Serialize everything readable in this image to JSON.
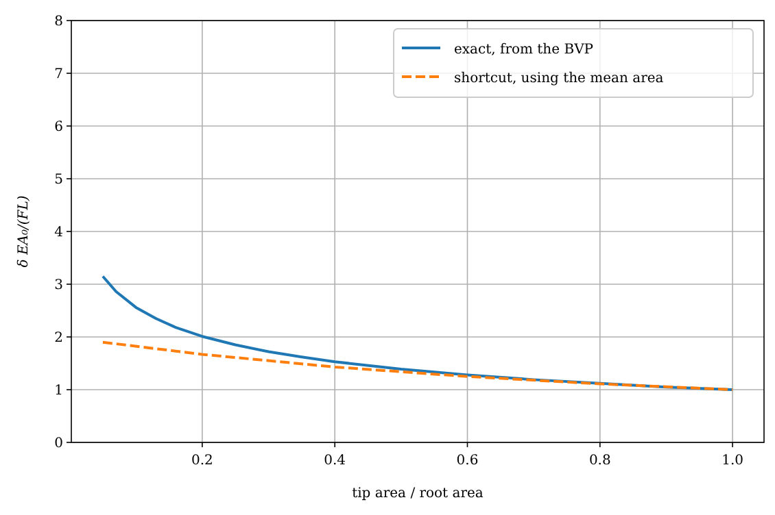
{
  "chart_data": {
    "type": "line",
    "xlabel": "tip area / root area",
    "ylabel": "δ EA₀/(FL)",
    "xlim": [
      0.0025,
      1.0475
    ],
    "xticks": [
      {
        "value": 0.2,
        "label": "0.2"
      },
      {
        "value": 0.4,
        "label": "0.4"
      },
      {
        "value": 0.6,
        "label": "0.6"
      },
      {
        "value": 0.8,
        "label": "0.8"
      },
      {
        "value": 1.0,
        "label": "1.0"
      }
    ],
    "ylim": [
      0,
      8
    ],
    "yticks": [
      0,
      1,
      2,
      3,
      4,
      5,
      6,
      7,
      8
    ],
    "grid": true,
    "legend": "top right",
    "series": [
      {
        "name": "exact, from the BVP",
        "color": "#1f77b4",
        "line_style": "solid",
        "x": [
          0.05,
          0.07,
          0.1,
          0.13,
          0.16,
          0.2,
          0.25,
          0.3,
          0.35,
          0.4,
          0.5,
          0.6,
          0.7,
          0.8,
          0.9,
          1.0
        ],
        "values": [
          3.15,
          2.86,
          2.56,
          2.35,
          2.18,
          2.01,
          1.85,
          1.72,
          1.62,
          1.53,
          1.39,
          1.28,
          1.19,
          1.12,
          1.05,
          1.0
        ]
      },
      {
        "name": "shortcut, using the mean area",
        "color": "#ff7f0e",
        "line_style": "dashed",
        "x": [
          0.05,
          0.2,
          0.4,
          0.6,
          0.8,
          1.0
        ],
        "values": [
          1.9,
          1.67,
          1.43,
          1.25,
          1.11,
          1.0
        ]
      }
    ]
  }
}
